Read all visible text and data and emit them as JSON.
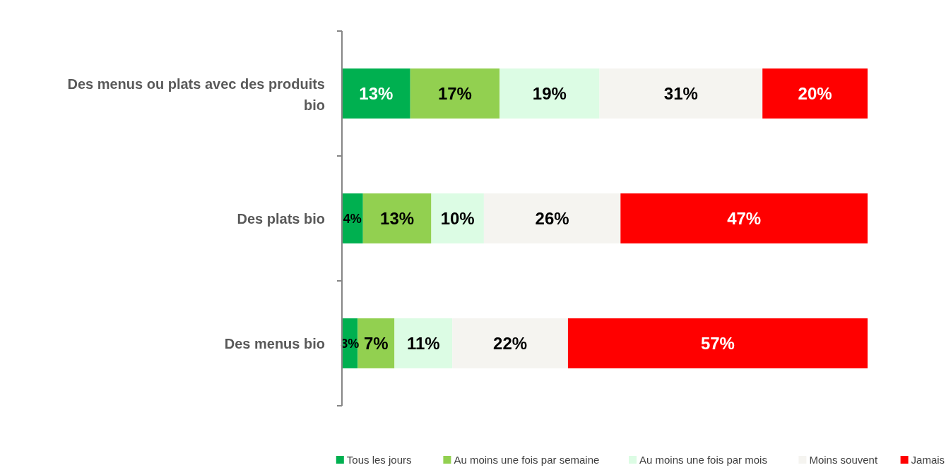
{
  "chart_data": {
    "type": "bar",
    "orientation": "horizontal",
    "stacked": true,
    "legend": "bottom",
    "categories": [
      "Des menus ou plats avec des produits bio",
      "Des plats bio",
      "Des menus bio"
    ],
    "series": [
      {
        "name": "Tous les jours",
        "color": "#00b050",
        "values": [
          13,
          4,
          3
        ],
        "value_labels": [
          "13%",
          "4%",
          "3%"
        ]
      },
      {
        "name": "Au moins une fois par semaine",
        "color": "#92d050",
        "values": [
          17,
          13,
          7
        ],
        "value_labels": [
          "17%",
          "13%",
          "7%"
        ]
      },
      {
        "name": "Au moins une fois par mois",
        "color": "#dcfce4",
        "values": [
          19,
          10,
          11
        ],
        "value_labels": [
          "19%",
          "10%",
          "11%"
        ]
      },
      {
        "name": "Moins souvent",
        "color": "#f5f4f0",
        "values": [
          31,
          26,
          22
        ],
        "value_labels": [
          "31%",
          "26%",
          "22%"
        ]
      },
      {
        "name": "Jamais",
        "color": "#ff0000",
        "values": [
          20,
          47,
          57
        ],
        "value_labels": [
          "20%",
          "47%",
          "57%"
        ]
      }
    ]
  }
}
